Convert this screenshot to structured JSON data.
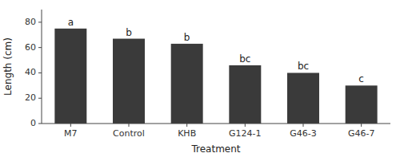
{
  "chart_data": {
    "type": "bar",
    "categories": [
      "M7",
      "Control",
      "KHB",
      "G124-1",
      "G46-3",
      "G46-7"
    ],
    "values": [
      75,
      67,
      63,
      46,
      40,
      30
    ],
    "annotations": [
      "a",
      "b",
      "b",
      "bc",
      "bc",
      "c"
    ],
    "color": "#3a3a3a",
    "xlabel": "Treatment",
    "ylabel": "Length (cm)",
    "ylim": [
      0,
      90
    ],
    "yticks": [
      0,
      20,
      40,
      60,
      80
    ],
    "grid": false
  }
}
